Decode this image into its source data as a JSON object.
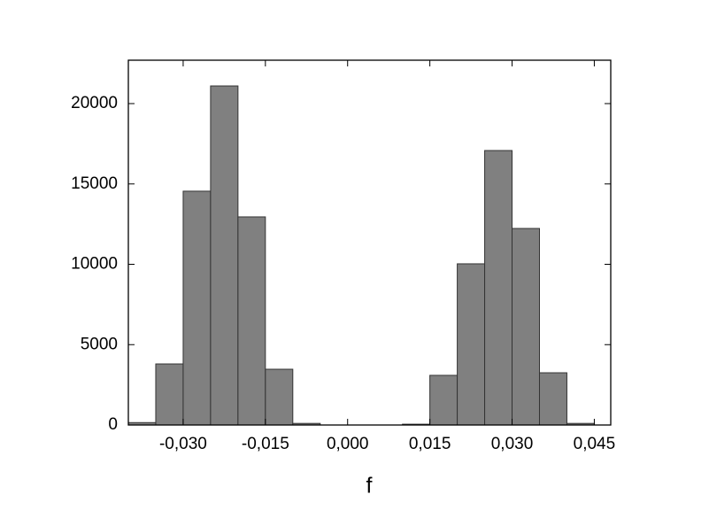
{
  "chart_data": {
    "type": "histogram",
    "x_label": "f",
    "bins": [
      -0.04,
      -0.035,
      -0.03,
      -0.025,
      -0.02,
      -0.015,
      -0.01,
      -0.005,
      0.0,
      0.005,
      0.01,
      0.015,
      0.02,
      0.025,
      0.03,
      0.035,
      0.04,
      0.045
    ],
    "values": [
      150,
      3800,
      14550,
      21100,
      12950,
      3470,
      100,
      0,
      0,
      0,
      50,
      3090,
      10030,
      17080,
      12230,
      3250,
      100
    ],
    "color": "#808080",
    "xlim": [
      -0.04,
      0.048
    ],
    "xticks": [
      {
        "value": -0.03,
        "label": "-0,030"
      },
      {
        "value": -0.015,
        "label": "-0,015"
      },
      {
        "value": 0,
        "label": "0,000"
      },
      {
        "value": 0.015,
        "label": "0,015"
      },
      {
        "value": 0.03,
        "label": "0,030"
      },
      {
        "value": 0.045,
        "label": "0,045"
      }
    ],
    "ylim": [
      0,
      22700
    ],
    "yticks": [
      0,
      5000,
      10000,
      15000,
      20000
    ]
  }
}
